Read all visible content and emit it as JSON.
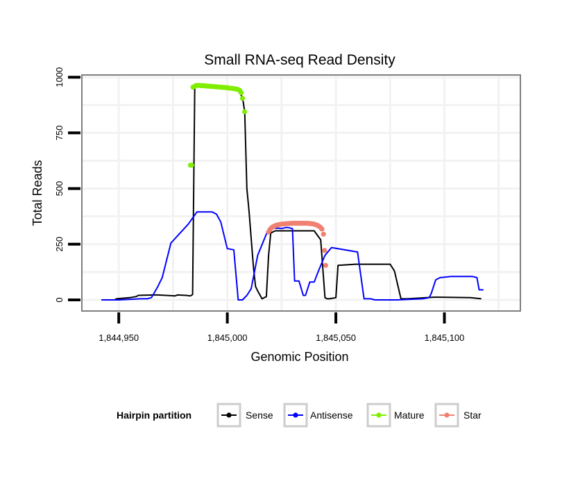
{
  "chart_data": {
    "type": "line",
    "title": "Small RNA-seq Read Density",
    "xlabel": "Genomic Position",
    "ylabel": "Total Reads",
    "xlim": [
      1844933,
      1845135
    ],
    "ylim": [
      -50,
      1010
    ],
    "x_ticks": [
      1844950,
      1845000,
      1845050,
      1845100
    ],
    "x_tick_labels": [
      "1,844,950",
      "1,845,000",
      "1,845,050",
      "1,845,100"
    ],
    "y_ticks": [
      0,
      250,
      500,
      750,
      1000
    ],
    "y_tick_labels": [
      "0",
      "250",
      "500",
      "750",
      "1000"
    ],
    "grid": true,
    "legend": {
      "title": "Hairpin partition",
      "placement": "bottom",
      "entries": [
        "Sense",
        "Antisense",
        "Mature",
        "Star"
      ]
    },
    "series": [
      {
        "name": "Sense",
        "color": "#000000",
        "style": "line",
        "x": [
          1844942,
          1844948,
          1844949,
          1844955,
          1844958,
          1844959,
          1844966,
          1844968,
          1844976,
          1844977,
          1844981,
          1844983,
          1844984,
          1844985,
          1844987,
          1844988,
          1844990,
          1844994,
          1845004,
          1845007,
          1845008,
          1845009,
          1845010,
          1845012,
          1845013,
          1845014,
          1845016,
          1845018,
          1845019,
          1845020,
          1845022,
          1845040,
          1845043,
          1845045,
          1845046,
          1845047,
          1845050,
          1845051,
          1845056,
          1845059,
          1845075,
          1845077,
          1845080,
          1845083,
          1845095,
          1845098,
          1845112,
          1845117
        ],
        "y": [
          0,
          0,
          5,
          10,
          15,
          20,
          22,
          22,
          18,
          22,
          20,
          18,
          24,
          960,
          961,
          963,
          962,
          960,
          952,
          910,
          845,
          500,
          400,
          150,
          60,
          40,
          5,
          15,
          200,
          300,
          310,
          310,
          270,
          10,
          5,
          5,
          10,
          155,
          158,
          160,
          160,
          130,
          5,
          5,
          12,
          12,
          10,
          5
        ]
      },
      {
        "name": "Antisense",
        "color": "#0000ff",
        "style": "line",
        "x": [
          1844942,
          1844950,
          1844960,
          1844963,
          1844965,
          1844966,
          1844968,
          1844970,
          1844974,
          1844982,
          1844986,
          1844990,
          1844992,
          1844993,
          1844994,
          1844995,
          1844997,
          1845000,
          1845003,
          1845005,
          1845006,
          1845007,
          1845009,
          1845011,
          1845014,
          1845019,
          1845020,
          1845021,
          1845022,
          1845024,
          1845025,
          1845027,
          1845028,
          1845030,
          1845031,
          1845033,
          1845035,
          1845036,
          1845038,
          1845040,
          1845042,
          1845045,
          1845048,
          1845060,
          1845063,
          1845064,
          1845066,
          1845068,
          1845078,
          1845090,
          1845093,
          1845094,
          1845096,
          1845098,
          1845103,
          1845113,
          1845115,
          1845116,
          1845118
        ],
        "y": [
          0,
          0,
          5,
          5,
          10,
          25,
          60,
          100,
          255,
          340,
          395,
          395,
          395,
          395,
          390,
          385,
          350,
          230,
          225,
          0,
          0,
          0,
          20,
          50,
          200,
          320,
          325,
          325,
          322,
          322,
          320,
          325,
          325,
          320,
          85,
          85,
          20,
          20,
          80,
          80,
          130,
          200,
          235,
          215,
          5,
          5,
          5,
          0,
          0,
          5,
          10,
          30,
          90,
          100,
          105,
          105,
          100,
          45,
          45
        ]
      },
      {
        "name": "Mature",
        "color": "#7fee00",
        "style": "points",
        "x": [
          1844983,
          1844983.6,
          1844984.2,
          1844984.8,
          1844985.5,
          1844986,
          1844986.6,
          1844987.2,
          1844987.8,
          1844988.4,
          1844989,
          1844989.6,
          1844990.2,
          1844990.8,
          1844991.4,
          1844992,
          1844992.6,
          1844993.2,
          1844993.8,
          1844994.4,
          1844995,
          1844995.6,
          1844996.2,
          1844996.8,
          1844997.4,
          1844998,
          1844998.6,
          1844999.2,
          1844999.8,
          1845000.4,
          1845001,
          1845001.6,
          1845002.2,
          1845002.8,
          1845003.4,
          1845004,
          1845004.6,
          1845005.2,
          1845005.8,
          1845006.4,
          1845007,
          1845008
        ],
        "y": [
          605,
          605,
          955,
          958,
          962,
          963,
          963,
          963,
          962,
          962,
          962,
          961,
          961,
          960,
          960,
          959,
          959,
          958,
          958,
          957,
          957,
          956,
          956,
          955,
          955,
          954,
          954,
          953,
          953,
          952,
          951,
          950,
          950,
          949,
          948,
          947,
          946,
          943,
          940,
          930,
          905,
          845
        ]
      },
      {
        "name": "Star",
        "color": "#f08070",
        "style": "points",
        "x": [
          1845019,
          1845019.6,
          1845020.2,
          1845020.8,
          1845021.4,
          1845022,
          1845022.6,
          1845023.2,
          1845023.8,
          1845024.4,
          1845025,
          1845025.6,
          1845026.2,
          1845026.8,
          1845027.4,
          1845028,
          1845028.6,
          1845029.2,
          1845029.8,
          1845030.4,
          1845031,
          1845031.6,
          1845032.2,
          1845032.8,
          1845033.4,
          1845034,
          1845034.6,
          1845035.2,
          1845035.8,
          1845036.4,
          1845037,
          1845037.6,
          1845038.2,
          1845038.8,
          1845039.4,
          1845040,
          1845040.6,
          1845041.2,
          1845041.8,
          1845042.4,
          1845043,
          1845043.6,
          1845044.3,
          1845044.8,
          1845045.3
        ],
        "y": [
          305,
          315,
          322,
          327,
          330,
          333,
          335,
          337,
          338,
          339,
          340,
          341,
          341,
          342,
          342,
          343,
          343,
          343,
          344,
          344,
          344,
          344,
          344,
          344,
          344,
          344,
          344,
          344,
          344,
          344,
          344,
          343,
          343,
          342,
          341,
          340,
          338,
          336,
          333,
          329,
          325,
          318,
          295,
          222,
          155
        ]
      }
    ]
  }
}
